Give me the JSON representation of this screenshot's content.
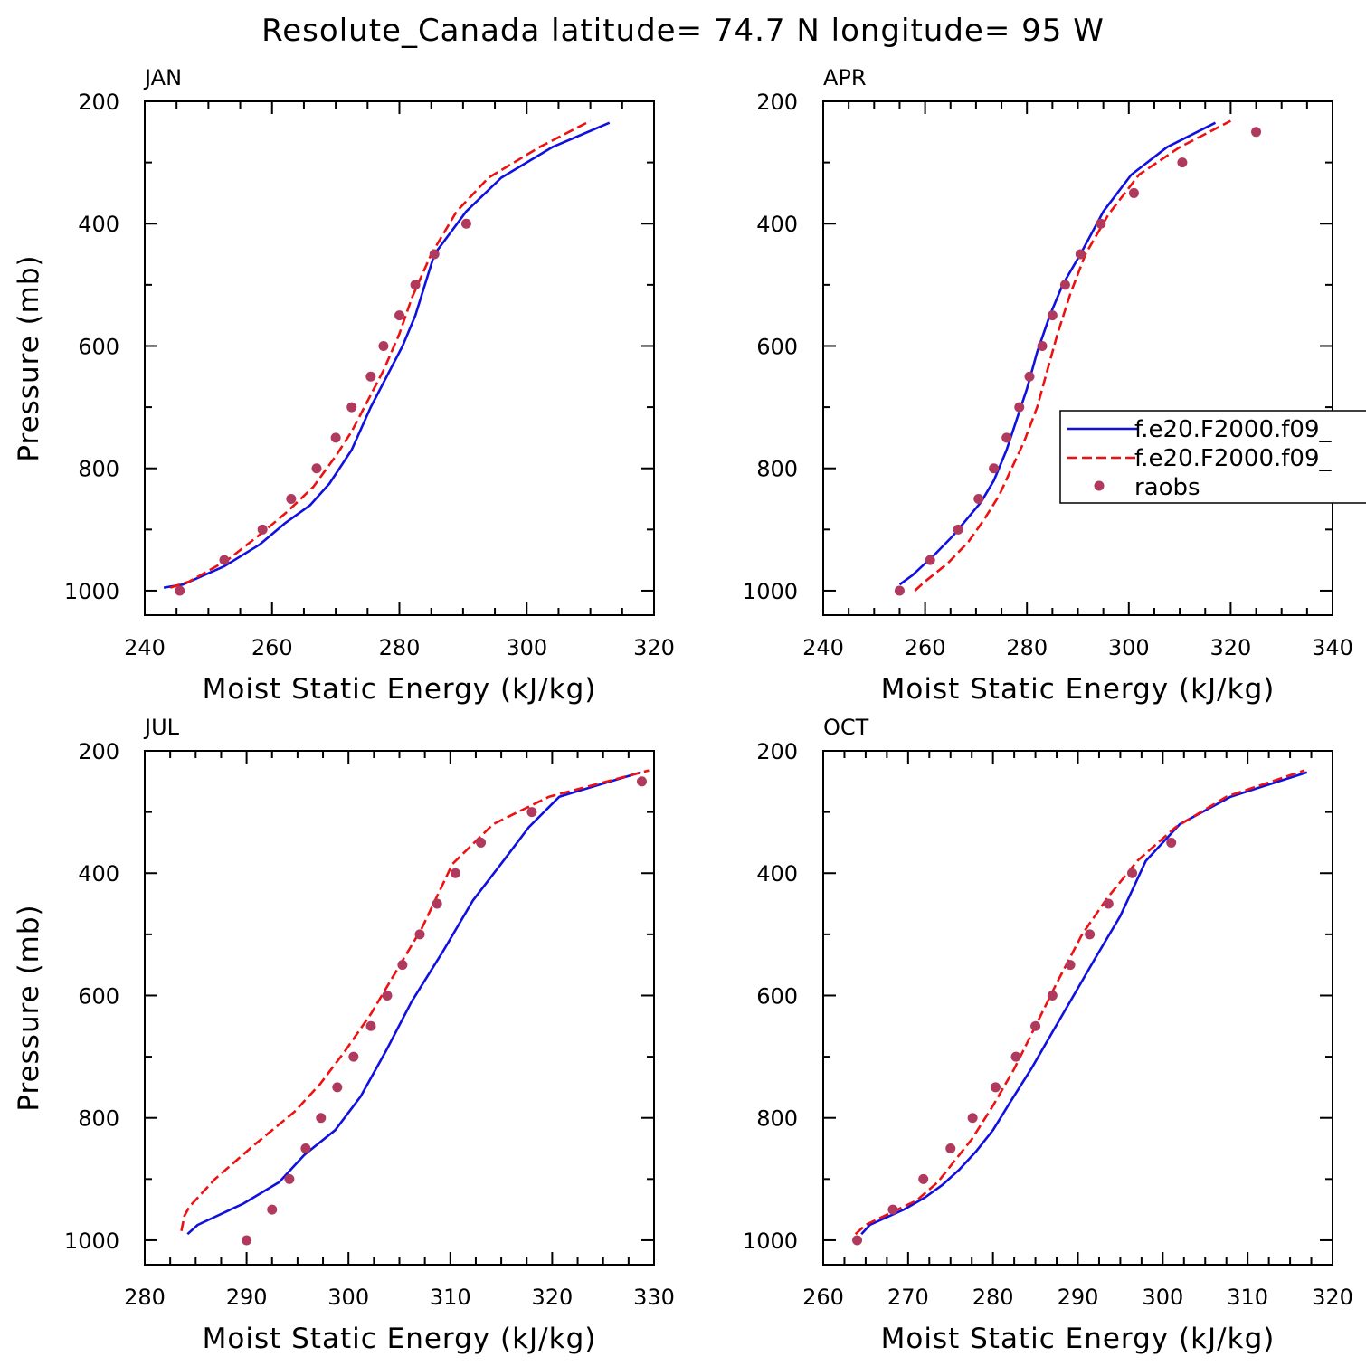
{
  "title": "Resolute_Canada  latitude= 74.7 N longitude= 95 W",
  "colors": {
    "model1": "#1010e0",
    "model2": "#ee1111",
    "raobs": "#b03a5e"
  },
  "legend": {
    "entries": [
      "f.e20.F2000.f09_",
      "f.e20.F2000.f09_",
      "raobs"
    ],
    "placement": "right-middle of APR panel (clipped at right edge)"
  },
  "chart_data": [
    {
      "type": "line",
      "panel": "JAN",
      "xlabel": "Moist Static Energy (kJ/kg)",
      "ylabel": "Pressure (mb)",
      "xlim": [
        240,
        320
      ],
      "xticks": [
        240,
        260,
        280,
        300,
        320
      ],
      "xminor": 5,
      "ylim": [
        1040,
        200
      ],
      "yticks": [
        200,
        400,
        600,
        800,
        1000
      ],
      "yminor": 100,
      "grid": false,
      "series": [
        {
          "name": "f.e20.F2000.f09_",
          "style": "solid",
          "x": [
            243,
            246,
            252.5,
            258,
            262,
            266,
            269,
            272.5,
            275.5,
            278,
            280.5,
            282.5,
            285.5,
            290.5,
            296,
            304,
            313
          ],
          "y": [
            995,
            990,
            960,
            925,
            890,
            860,
            825,
            770,
            700,
            650,
            600,
            550,
            450,
            380,
            325,
            275,
            235
          ]
        },
        {
          "name": "f.e20.F2000.f09_",
          "style": "dashed",
          "x": [
            244,
            247,
            253,
            258.5,
            262.5,
            266.5,
            270,
            272.5,
            275,
            277.5,
            280,
            282,
            285,
            289,
            294,
            302,
            310
          ],
          "y": [
            995,
            985,
            950,
            905,
            870,
            830,
            780,
            740,
            690,
            640,
            580,
            520,
            450,
            380,
            325,
            275,
            232
          ]
        },
        {
          "name": "raobs",
          "style": "markers",
          "x": [
            245.5,
            252.5,
            258.5,
            263,
            267,
            270,
            272.5,
            275.5,
            277.5,
            280,
            282.5,
            285.5,
            290.5
          ],
          "y": [
            1000,
            950,
            900,
            850,
            800,
            750,
            700,
            650,
            600,
            550,
            500,
            450,
            400
          ]
        }
      ]
    },
    {
      "type": "line",
      "panel": "APR",
      "xlabel": "Moist Static Energy (kJ/kg)",
      "ylabel": "",
      "xlim": [
        240,
        340
      ],
      "xticks": [
        240,
        260,
        280,
        300,
        320,
        340
      ],
      "xminor": 5,
      "ylim": [
        1040,
        200
      ],
      "yticks": [
        200,
        400,
        600,
        800,
        1000
      ],
      "yminor": 100,
      "grid": false,
      "series": [
        {
          "name": "f.e20.F2000.f09_",
          "style": "solid",
          "x": [
            255,
            257.5,
            262,
            265.5,
            268.5,
            271,
            273.5,
            276,
            278,
            280,
            282,
            284.5,
            287,
            290.5,
            295,
            300.5,
            307.5,
            317
          ],
          "y": [
            990,
            975,
            940,
            910,
            880,
            855,
            820,
            770,
            720,
            670,
            610,
            550,
            500,
            450,
            380,
            320,
            275,
            235
          ]
        },
        {
          "name": "f.e20.F2000.f09_",
          "style": "dashed",
          "x": [
            258,
            260,
            264.5,
            268.5,
            271.5,
            274.5,
            277,
            279.5,
            282,
            284,
            286,
            288.5,
            291.5,
            296,
            302,
            310,
            320
          ],
          "y": [
            1000,
            985,
            955,
            920,
            885,
            845,
            800,
            755,
            700,
            640,
            580,
            515,
            450,
            385,
            320,
            275,
            232
          ]
        },
        {
          "name": "raobs",
          "style": "markers",
          "x": [
            255,
            261,
            266.5,
            270.5,
            273.5,
            276,
            278.5,
            280.5,
            283,
            285,
            287.5,
            290.5,
            294.5,
            301,
            310.5,
            325
          ],
          "y": [
            1000,
            950,
            900,
            850,
            800,
            750,
            700,
            650,
            600,
            550,
            500,
            450,
            400,
            350,
            300,
            250
          ]
        }
      ]
    },
    {
      "type": "line",
      "panel": "JUL",
      "xlabel": "Moist Static Energy (kJ/kg)",
      "ylabel": "Pressure (mb)",
      "xlim": [
        280,
        330
      ],
      "xticks": [
        280,
        290,
        300,
        310,
        320,
        330
      ],
      "xminor": 2.5,
      "ylim": [
        1040,
        200
      ],
      "yticks": [
        200,
        400,
        600,
        800,
        1000
      ],
      "yminor": 100,
      "grid": false,
      "series": [
        {
          "name": "f.e20.F2000.f09_",
          "style": "solid",
          "x": [
            284.2,
            285.2,
            289.7,
            293.2,
            295.7,
            298.7,
            301.2,
            303.7,
            306.2,
            309.2,
            312.2,
            315.2,
            317.7,
            320.7,
            328.7
          ],
          "y": [
            990,
            975,
            940,
            905,
            860,
            820,
            765,
            690,
            610,
            530,
            445,
            380,
            325,
            275,
            235
          ]
        },
        {
          "name": "f.e20.F2000.f09_",
          "style": "dashed",
          "x": [
            283.6,
            283.9,
            284.4,
            286.9,
            290.7,
            294.7,
            297.2,
            299.7,
            302.2,
            304.7,
            307.2,
            310.2,
            314.2,
            319.7,
            329.5
          ],
          "y": [
            985,
            960,
            945,
            900,
            845,
            790,
            745,
            690,
            630,
            560,
            490,
            385,
            320,
            275,
            232
          ]
        },
        {
          "name": "raobs",
          "style": "markers",
          "x": [
            290,
            292.5,
            294.2,
            295.8,
            297.3,
            298.9,
            300.5,
            302.2,
            303.8,
            305.3,
            307,
            308.7,
            310.5,
            313,
            318,
            328.8
          ],
          "y": [
            1000,
            950,
            900,
            850,
            800,
            750,
            700,
            650,
            600,
            550,
            500,
            450,
            400,
            350,
            300,
            250
          ]
        }
      ]
    },
    {
      "type": "line",
      "panel": "OCT",
      "xlabel": "Moist Static Energy (kJ/kg)",
      "ylabel": "",
      "xlim": [
        260,
        320
      ],
      "xticks": [
        260,
        270,
        280,
        290,
        300,
        310,
        320
      ],
      "xminor": 2.5,
      "ylim": [
        1040,
        200
      ],
      "yticks": [
        200,
        400,
        600,
        800,
        1000
      ],
      "yminor": 100,
      "grid": false,
      "series": [
        {
          "name": "f.e20.F2000.f09_",
          "style": "solid",
          "x": [
            264.5,
            265.5,
            269.5,
            272,
            274,
            276,
            278,
            280,
            282,
            284.5,
            287,
            289.5,
            292,
            295,
            298,
            302,
            308,
            317
          ],
          "y": [
            990,
            975,
            950,
            930,
            910,
            885,
            855,
            820,
            775,
            720,
            660,
            600,
            540,
            470,
            380,
            320,
            275,
            235
          ]
        },
        {
          "name": "f.e20.F2000.f09_",
          "style": "dashed",
          "x": [
            263.8,
            265,
            268,
            271,
            273.5,
            275.5,
            277.5,
            280,
            282.5,
            285,
            287.5,
            290.5,
            293.5,
            297,
            301.5,
            307.5,
            316.7
          ],
          "y": [
            990,
            975,
            955,
            935,
            905,
            870,
            835,
            780,
            720,
            650,
            580,
            500,
            440,
            380,
            325,
            275,
            232
          ]
        },
        {
          "name": "raobs",
          "style": "markers",
          "x": [
            264,
            268.2,
            271.8,
            275,
            277.6,
            280.3,
            282.7,
            285,
            287,
            289.1,
            291.4,
            293.6,
            296.4,
            301
          ],
          "y": [
            1000,
            950,
            900,
            850,
            800,
            750,
            700,
            650,
            600,
            550,
            500,
            450,
            400,
            350
          ]
        }
      ]
    }
  ]
}
